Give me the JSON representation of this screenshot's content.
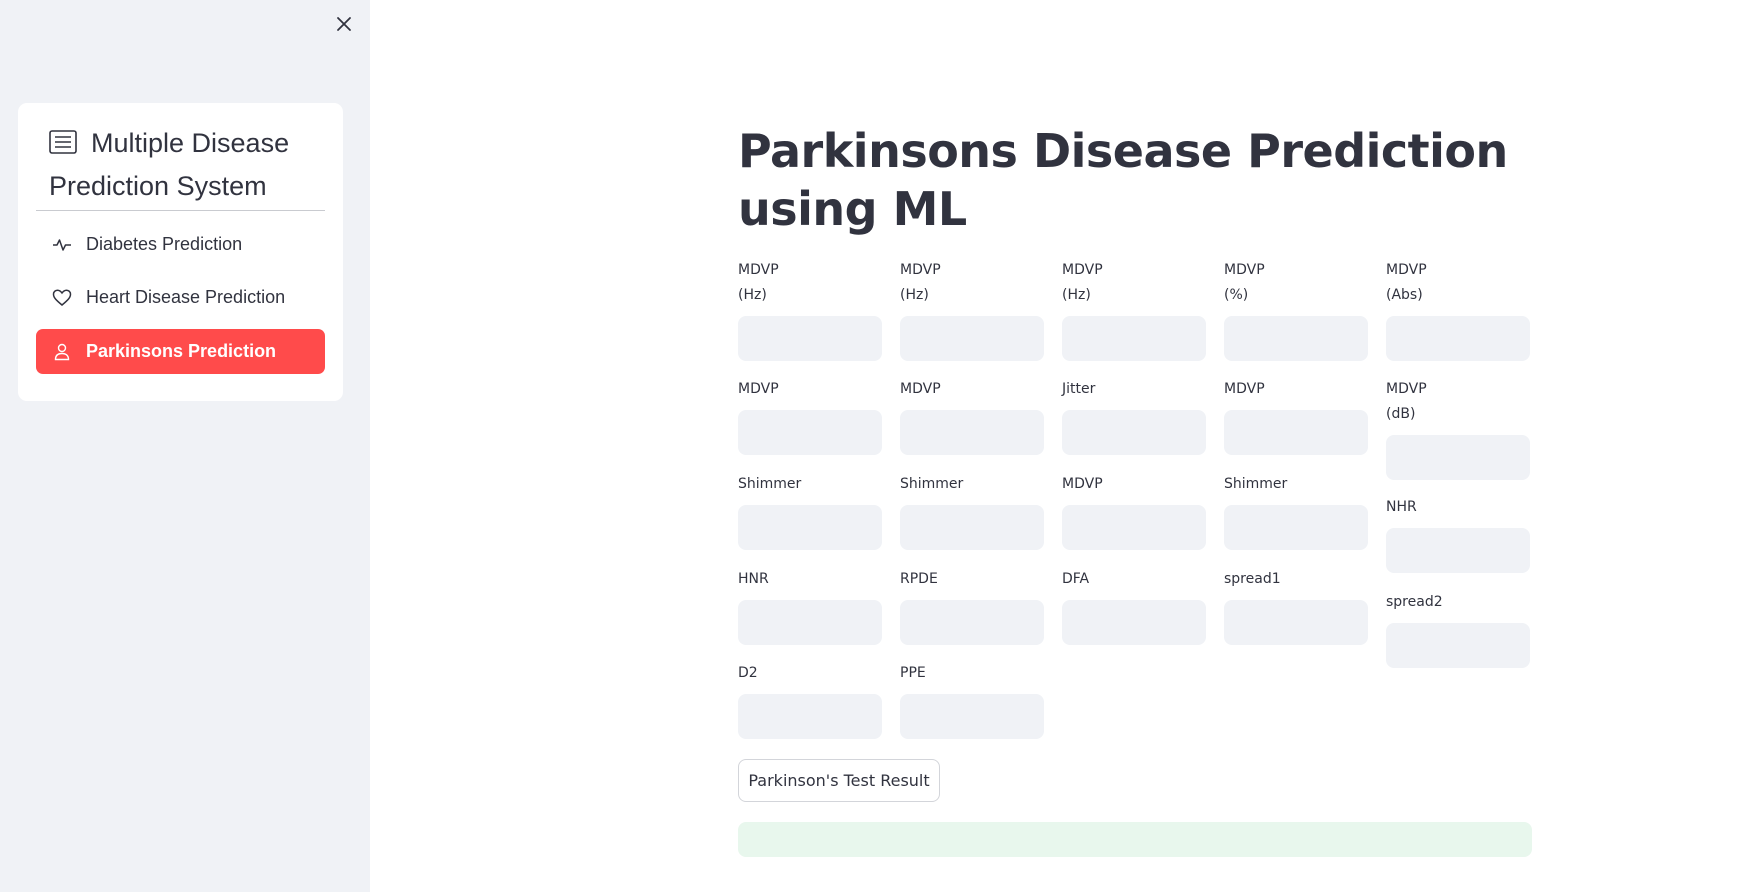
{
  "sidebar": {
    "title": "Multiple Disease Prediction System",
    "items": [
      {
        "label": "Diabetes Prediction",
        "icon": "activity-icon"
      },
      {
        "label": "Heart Disease Prediction",
        "icon": "heart-icon"
      },
      {
        "label": "Parkinsons Prediction",
        "icon": "person-icon"
      }
    ],
    "active_color": "#ff4b4b"
  },
  "main": {
    "title": "Parkinsons Disease Prediction using ML",
    "fields": [
      {
        "label": "MDVP\n(Hz)",
        "value": ""
      },
      {
        "label": "MDVP\n(Hz)",
        "value": ""
      },
      {
        "label": "MDVP\n(Hz)",
        "value": ""
      },
      {
        "label": "MDVP\n(%)",
        "value": ""
      },
      {
        "label": "MDVP\n(Abs)",
        "value": ""
      },
      {
        "label": "MDVP",
        "value": ""
      },
      {
        "label": "MDVP",
        "value": ""
      },
      {
        "label": "Jitter",
        "value": ""
      },
      {
        "label": "MDVP",
        "value": ""
      },
      {
        "label": "MDVP\n(dB)",
        "value": ""
      },
      {
        "label": "Shimmer",
        "value": ""
      },
      {
        "label": "Shimmer",
        "value": ""
      },
      {
        "label": "MDVP",
        "value": ""
      },
      {
        "label": "Shimmer",
        "value": ""
      },
      {
        "label": "NHR",
        "value": ""
      },
      {
        "label": "HNR",
        "value": ""
      },
      {
        "label": "RPDE",
        "value": ""
      },
      {
        "label": "DFA",
        "value": ""
      },
      {
        "label": "spread1",
        "value": ""
      },
      {
        "label": "spread2",
        "value": ""
      },
      {
        "label": "D2",
        "value": ""
      },
      {
        "label": "PPE",
        "value": ""
      }
    ],
    "button_label": "Parkinson's Test Result",
    "result_text": ""
  }
}
